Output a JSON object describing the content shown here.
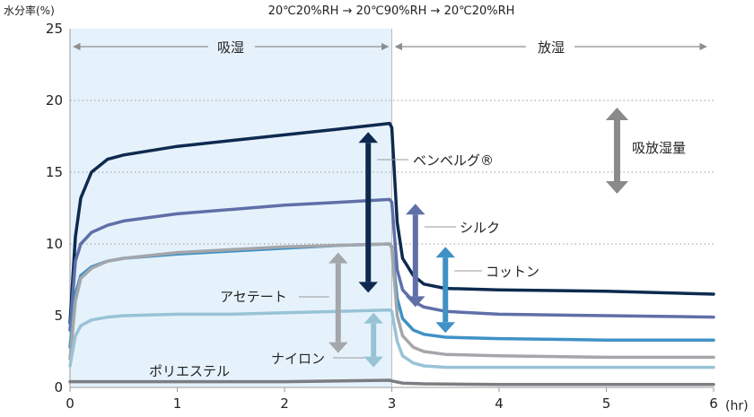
{
  "chart_data": {
    "type": "line",
    "title": "20℃20%RH → 20℃90%RH → 20℃20%RH",
    "ylabel": "水分率(%)",
    "xunit": "(hr)",
    "xlim": [
      0,
      6
    ],
    "ylim": [
      0,
      25
    ],
    "x_ticks": [
      "0",
      "1",
      "2",
      "3",
      "4",
      "5",
      "6"
    ],
    "y_ticks": [
      "0",
      "5",
      "10",
      "15",
      "20",
      "25"
    ],
    "grid": "horizontal dotted at 10, 15, 20",
    "phases": [
      {
        "label": "吸湿",
        "x_start": 0,
        "x_end": 3,
        "shaded": true
      },
      {
        "label": "放湿",
        "x_start": 3,
        "x_end": 6,
        "shaded": false
      }
    ],
    "legend_symbol_label": "吸放湿量",
    "series": [
      {
        "name": "ベンベルグ®",
        "color": "#0d2a4f",
        "x": [
          0,
          0.05,
          0.1,
          0.2,
          0.35,
          0.5,
          1,
          1.5,
          2,
          2.5,
          2.98,
          3.0,
          3.05,
          3.1,
          3.2,
          3.3,
          3.5,
          4,
          5,
          6
        ],
        "y": [
          4.5,
          10.5,
          13.2,
          15.0,
          15.9,
          16.2,
          16.8,
          17.2,
          17.6,
          18.0,
          18.4,
          18.1,
          11.5,
          9.0,
          7.8,
          7.2,
          6.9,
          6.8,
          6.7,
          6.5
        ]
      },
      {
        "name": "シルク",
        "color": "#5f6fa8",
        "x": [
          0,
          0.05,
          0.1,
          0.2,
          0.35,
          0.5,
          1,
          1.5,
          2,
          2.5,
          2.98,
          3.0,
          3.05,
          3.1,
          3.2,
          3.3,
          3.5,
          4,
          5,
          6
        ],
        "y": [
          4.0,
          8.8,
          10.0,
          10.8,
          11.3,
          11.6,
          12.1,
          12.4,
          12.7,
          12.9,
          13.1,
          12.9,
          8.2,
          6.8,
          6.0,
          5.6,
          5.3,
          5.1,
          5.0,
          4.9
        ]
      },
      {
        "name": "コットン",
        "color": "#3f91c6",
        "x": [
          0,
          0.05,
          0.1,
          0.2,
          0.35,
          0.5,
          1,
          1.5,
          2,
          2.5,
          2.98,
          3.0,
          3.05,
          3.1,
          3.2,
          3.3,
          3.5,
          4,
          5,
          6
        ],
        "y": [
          2.8,
          6.5,
          7.8,
          8.4,
          8.8,
          9.0,
          9.3,
          9.5,
          9.7,
          9.9,
          10.0,
          9.8,
          6.2,
          4.8,
          4.0,
          3.7,
          3.5,
          3.4,
          3.3,
          3.3
        ]
      },
      {
        "name": "アセテート",
        "color": "#a4a6aa",
        "x": [
          0,
          0.05,
          0.1,
          0.2,
          0.35,
          0.5,
          1,
          1.5,
          2,
          2.5,
          2.98,
          3.0,
          3.05,
          3.1,
          3.2,
          3.3,
          3.5,
          4,
          5,
          6
        ],
        "y": [
          2.0,
          6.0,
          7.6,
          8.3,
          8.8,
          9.0,
          9.4,
          9.6,
          9.8,
          9.9,
          10.0,
          9.7,
          5.0,
          3.6,
          2.8,
          2.5,
          2.3,
          2.2,
          2.1,
          2.1
        ]
      },
      {
        "name": "ナイロン",
        "color": "#98c3d6",
        "x": [
          0,
          0.05,
          0.1,
          0.2,
          0.35,
          0.5,
          1,
          1.5,
          2,
          2.5,
          2.98,
          3.0,
          3.05,
          3.1,
          3.2,
          3.3,
          3.5,
          4,
          5,
          6
        ],
        "y": [
          1.5,
          3.6,
          4.3,
          4.7,
          4.9,
          5.0,
          5.1,
          5.1,
          5.2,
          5.3,
          5.4,
          5.3,
          3.2,
          2.2,
          1.7,
          1.5,
          1.4,
          1.4,
          1.4,
          1.4
        ]
      },
      {
        "name": "ポリエステル",
        "color": "#7a7d82",
        "x": [
          0,
          0.2,
          0.5,
          1,
          2,
          2.98,
          3.0,
          3.1,
          3.3,
          4,
          5,
          6
        ],
        "y": [
          0.4,
          0.4,
          0.4,
          0.4,
          0.4,
          0.5,
          0.45,
          0.3,
          0.25,
          0.2,
          0.2,
          0.2
        ]
      }
    ]
  }
}
